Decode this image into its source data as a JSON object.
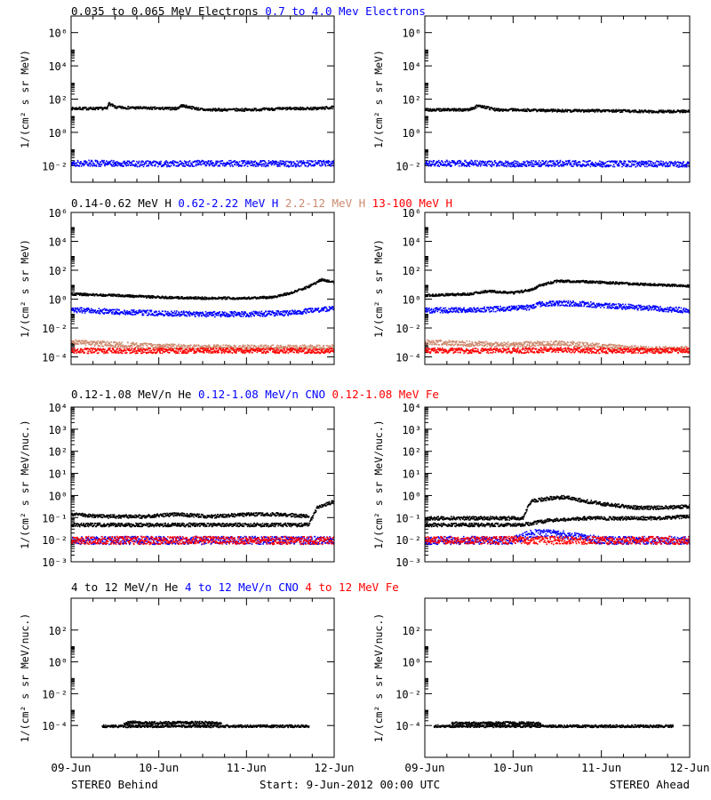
{
  "colors": {
    "black": "#000000",
    "blue": "#0000ff",
    "tan": "#cd8a6e",
    "red": "#ff0000"
  },
  "footer": {
    "left": "STEREO Behind",
    "center": "Start:  9-Jun-2012 00:00 UTC",
    "right": "STEREO Ahead"
  },
  "x_ticks": [
    "09-Jun",
    "10-Jun",
    "11-Jun",
    "12-Jun"
  ],
  "chart_data": [
    {
      "type": "scatter",
      "row_title": [
        {
          "text": "0.035 to 0.065 MeV Electrons",
          "color": "#000000"
        },
        {
          "text": "0.7 to 4.0 Mev Electrons",
          "color": "#0000ff"
        }
      ],
      "ylabel": "1/(cm² s sr MeV)",
      "ylog": true,
      "ylim": [
        0.001,
        10000000
      ],
      "yticks": [
        "10⁻²",
        "10⁰",
        "10²",
        "10⁴",
        "10⁶"
      ],
      "ytick_values": [
        0.01,
        1,
        100,
        10000,
        1000000
      ],
      "xlim": [
        0,
        3
      ],
      "panels": [
        {
          "spacecraft": "STEREO Behind",
          "series": [
            {
              "color": "#000000",
              "x": [
                0,
                0.3,
                0.4,
                0.42,
                0.5,
                1.0,
                1.2,
                1.25,
                1.5,
                2.0,
                2.5,
                2.8,
                3.0
              ],
              "y": [
                30,
                30,
                30,
                60,
                35,
                30,
                30,
                45,
                25,
                25,
                30,
                30,
                35
              ]
            },
            {
              "color": "#0000ff",
              "x": [
                0,
                0.5,
                1.0,
                1.5,
                2.0,
                2.5,
                3.0
              ],
              "y": [
                0.015,
                0.015,
                0.014,
                0.015,
                0.015,
                0.014,
                0.015
              ]
            }
          ]
        },
        {
          "spacecraft": "STEREO Ahead",
          "series": [
            {
              "color": "#000000",
              "x": [
                0,
                0.2,
                0.5,
                0.6,
                0.8,
                1.0,
                1.5,
                2.0,
                2.5,
                3.0
              ],
              "y": [
                25,
                25,
                25,
                45,
                25,
                25,
                22,
                22,
                20,
                20
              ]
            },
            {
              "color": "#0000ff",
              "x": [
                0,
                0.5,
                1.0,
                1.5,
                2.0,
                2.5,
                3.0
              ],
              "y": [
                0.015,
                0.015,
                0.014,
                0.015,
                0.014,
                0.014,
                0.013
              ]
            }
          ]
        }
      ]
    },
    {
      "type": "scatter",
      "row_title": [
        {
          "text": "0.14-0.62 MeV H",
          "color": "#000000"
        },
        {
          "text": "0.62-2.22 MeV H",
          "color": "#0000ff"
        },
        {
          "text": "2.2-12 MeV H",
          "color": "#cd8a6e"
        },
        {
          "text": "13-100 MeV H",
          "color": "#ff0000"
        }
      ],
      "ylabel": "1/(cm² s sr MeV)",
      "ylog": true,
      "ylim": [
        3e-05,
        1000000
      ],
      "yticks": [
        "10⁻⁴",
        "10⁻²",
        "10⁰",
        "10²",
        "10⁴",
        "10⁶"
      ],
      "ytick_values": [
        0.0001,
        0.01,
        1,
        100,
        10000,
        1000000
      ],
      "xlim": [
        0,
        3
      ],
      "panels": [
        {
          "spacecraft": "STEREO Behind",
          "series": [
            {
              "color": "#000000",
              "x": [
                0,
                0.5,
                1.0,
                1.5,
                2.0,
                2.3,
                2.5,
                2.7,
                2.85,
                3.0
              ],
              "y": [
                2.5,
                2,
                1.5,
                1.3,
                1.3,
                1.5,
                3,
                8,
                25,
                15
              ]
            },
            {
              "color": "#0000ff",
              "x": [
                0,
                0.5,
                1.0,
                1.5,
                2.0,
                2.5,
                2.8,
                3.0
              ],
              "y": [
                0.2,
                0.15,
                0.12,
                0.1,
                0.1,
                0.12,
                0.2,
                0.25
              ]
            },
            {
              "color": "#cd8a6e",
              "x": [
                0,
                0.5,
                1.0,
                1.5,
                2.0,
                2.5,
                3.0
              ],
              "y": [
                0.0012,
                0.0008,
                0.0006,
                0.0005,
                0.0005,
                0.0005,
                0.0005
              ]
            },
            {
              "color": "#ff0000",
              "x": [
                0,
                0.5,
                1.0,
                1.5,
                2.0,
                2.5,
                3.0
              ],
              "y": [
                0.0003,
                0.0003,
                0.0003,
                0.0003,
                0.0003,
                0.0003,
                0.0003
              ]
            }
          ]
        },
        {
          "spacecraft": "STEREO Ahead",
          "series": [
            {
              "color": "#000000",
              "x": [
                0,
                0.5,
                0.7,
                1.0,
                1.2,
                1.3,
                1.5,
                1.8,
                2.2,
                2.6,
                3.0
              ],
              "y": [
                2,
                2.5,
                4,
                3,
                5,
                10,
                20,
                18,
                14,
                11,
                9
              ]
            },
            {
              "color": "#0000ff",
              "x": [
                0,
                0.5,
                1.0,
                1.2,
                1.3,
                1.5,
                1.8,
                2.2,
                2.6,
                3.0
              ],
              "y": [
                0.18,
                0.2,
                0.25,
                0.3,
                0.5,
                0.6,
                0.5,
                0.35,
                0.25,
                0.18
              ]
            },
            {
              "color": "#cd8a6e",
              "x": [
                0,
                0.5,
                1.0,
                1.5,
                2.0,
                2.5,
                3.0
              ],
              "y": [
                0.0012,
                0.0009,
                0.0008,
                0.001,
                0.0006,
                0.0004,
                0.0004
              ]
            },
            {
              "color": "#ff0000",
              "x": [
                0,
                0.5,
                1.0,
                1.5,
                2.0,
                2.5,
                3.0
              ],
              "y": [
                0.0003,
                0.0003,
                0.0003,
                0.00035,
                0.0003,
                0.0003,
                0.0003
              ]
            }
          ]
        }
      ]
    },
    {
      "type": "scatter",
      "row_title": [
        {
          "text": "0.12-1.08 MeV/n He",
          "color": "#000000"
        },
        {
          "text": "0.12-1.08 MeV/n CNO",
          "color": "#0000ff"
        },
        {
          "text": "0.12-1.08 MeV Fe",
          "color": "#ff0000"
        }
      ],
      "ylabel": "1/(cm² s sr MeV/nuc.)",
      "ylog": true,
      "ylim": [
        0.001,
        10000
      ],
      "yticks": [
        "10⁻³",
        "10⁻²",
        "10⁻¹",
        "10⁰",
        "10¹",
        "10²",
        "10³",
        "10⁴"
      ],
      "ytick_values": [
        0.001,
        0.01,
        0.1,
        1,
        10,
        100,
        1000,
        10000
      ],
      "xlim": [
        0,
        3
      ],
      "panels": [
        {
          "spacecraft": "STEREO Behind",
          "series": [
            {
              "color": "#000000",
              "x": [
                0,
                0.3,
                0.6,
                0.9,
                1.2,
                1.5,
                1.8,
                2.1,
                2.4,
                2.7,
                2.8,
                3.0
              ],
              "y": [
                0.05,
                0.05,
                0.05,
                0.05,
                0.05,
                0.05,
                0.05,
                0.05,
                0.05,
                0.05,
                0.3,
                0.6
              ]
            },
            {
              "color": "#000000",
              "x": [
                0,
                0.4,
                0.8,
                1.2,
                1.6,
                2.0,
                2.4,
                2.7
              ],
              "y": [
                0.15,
                0.12,
                0.12,
                0.15,
                0.12,
                0.15,
                0.15,
                0.12
              ]
            },
            {
              "color": "#0000ff",
              "x": [
                0,
                0.5,
                1.0,
                1.5,
                2.0,
                2.5,
                3.0
              ],
              "y": [
                0.01,
                0.01,
                0.01,
                0.01,
                0.01,
                0.01,
                0.01
              ]
            },
            {
              "color": "#ff0000",
              "x": [
                0,
                0.5,
                1.0,
                1.5,
                2.0,
                2.5,
                3.0
              ],
              "y": [
                0.01,
                0.01,
                0.01,
                0.01,
                0.01,
                0.01,
                0.01
              ]
            }
          ]
        },
        {
          "spacecraft": "STEREO Ahead",
          "series": [
            {
              "color": "#000000",
              "x": [
                0,
                0.3,
                0.6,
                0.9,
                1.1,
                1.2,
                1.4,
                1.6,
                1.8,
                2.1,
                2.4,
                2.7,
                3.0
              ],
              "y": [
                0.1,
                0.1,
                0.1,
                0.1,
                0.1,
                0.6,
                0.8,
                0.9,
                0.6,
                0.4,
                0.3,
                0.3,
                0.35
              ]
            },
            {
              "color": "#000000",
              "x": [
                0,
                0.3,
                0.6,
                0.9,
                1.1,
                1.4,
                1.8,
                2.2,
                2.6,
                3.0
              ],
              "y": [
                0.05,
                0.05,
                0.05,
                0.05,
                0.05,
                0.08,
                0.1,
                0.1,
                0.1,
                0.12
              ]
            },
            {
              "color": "#0000ff",
              "x": [
                0,
                0.5,
                1.0,
                1.2,
                1.5,
                2.0,
                2.5,
                3.0
              ],
              "y": [
                0.01,
                0.01,
                0.01,
                0.02,
                0.02,
                0.01,
                0.01,
                0.01
              ]
            },
            {
              "color": "#ff0000",
              "x": [
                0,
                0.5,
                1.0,
                1.5,
                2.0,
                2.5,
                3.0
              ],
              "y": [
                0.01,
                0.01,
                0.01,
                0.01,
                0.01,
                0.01,
                0.01
              ]
            }
          ]
        }
      ]
    },
    {
      "type": "scatter",
      "row_title": [
        {
          "text": "4 to 12 MeV/n He",
          "color": "#000000"
        },
        {
          "text": "4 to 12 MeV/n CNO",
          "color": "#0000ff"
        },
        {
          "text": "4 to 12 MeV Fe",
          "color": "#ff0000"
        }
      ],
      "ylabel": "1/(cm² s sr MeV/nuc.)",
      "ylog": true,
      "ylim": [
        1e-06,
        10000
      ],
      "yticks": [
        "10⁻⁴",
        "10⁻²",
        "10⁰",
        "10²"
      ],
      "ytick_values": [
        0.0001,
        0.01,
        1,
        100
      ],
      "xlim": [
        0,
        3
      ],
      "panels": [
        {
          "spacecraft": "STEREO Behind",
          "series": [
            {
              "color": "#000000",
              "x": [
                0.35,
                0.5,
                0.7,
                0.9,
                1.1,
                1.3,
                1.5,
                1.7,
                1.9,
                2.1,
                2.3,
                2.5,
                2.7
              ],
              "y": [
                0.0001,
                0.0001,
                0.0001,
                0.0001,
                0.0001,
                0.0001,
                0.0001,
                0.0001,
                0.0001,
                0.0001,
                0.0001,
                0.0001,
                0.0001
              ]
            },
            {
              "color": "#000000",
              "x": [
                0.6,
                0.7,
                0.85,
                1.5,
                1.7
              ],
              "y": [
                0.00015,
                0.00018,
                0.00016,
                0.00017,
                0.00015
              ]
            }
          ]
        },
        {
          "spacecraft": "STEREO Ahead",
          "series": [
            {
              "color": "#000000",
              "x": [
                0.1,
                0.3,
                0.5,
                0.8,
                1.0,
                1.3,
                1.6,
                2.0,
                2.4,
                2.8
              ],
              "y": [
                0.0001,
                0.0001,
                0.0001,
                0.0001,
                0.0001,
                0.0001,
                0.0001,
                0.0001,
                0.0001,
                0.0001
              ]
            },
            {
              "color": "#000000",
              "x": [
                0.3,
                0.95,
                1.3
              ],
              "y": [
                0.00015,
                0.00016,
                0.00015
              ]
            }
          ]
        }
      ]
    }
  ]
}
